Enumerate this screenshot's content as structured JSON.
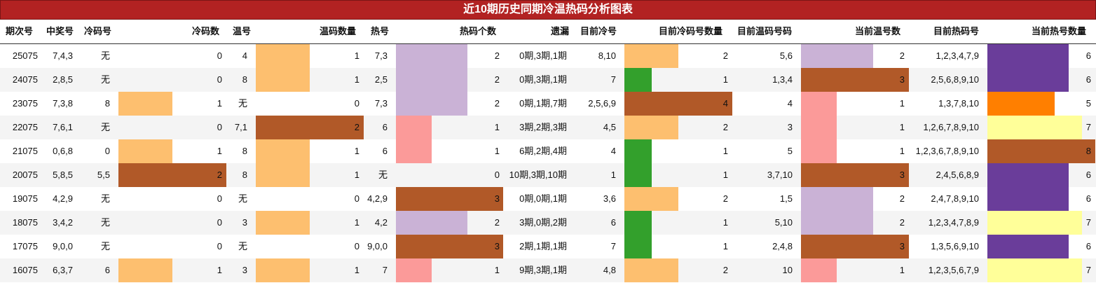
{
  "title": "近10期历史同期冷温热码分析图表",
  "headers": [
    "期次号",
    "中奖号",
    "冷码号",
    "冷码数",
    "温号",
    "温码数量",
    "热号",
    "热码个数",
    "遗漏",
    "目前冷号",
    "目前冷码号数量",
    "目前温码号码",
    "当前温号数",
    "目前热码号",
    "当前热号数量"
  ],
  "colors": {
    "1": "#fdbf6f",
    "2": "#b15928",
    "3": "#ff7f00",
    "4": "#ff7f00",
    "5": "#ff7f00",
    "6": "#6a3d9a",
    "7": "#ffff99",
    "8": "#b15928"
  },
  "rows": [
    {
      "issue": "25075",
      "win": "7,4,3",
      "cold": "无",
      "cold_n": 0,
      "warm": "4",
      "warm_n": 1,
      "hot": "7,3",
      "hot_n": 2,
      "miss": "0期,3期,1期",
      "cur_cold": "8,10",
      "cur_cold_n": 2,
      "cur_warm": "5,6",
      "cur_warm_n": 2,
      "cur_hot": "1,2,3,4,7,9",
      "cur_hot_n": 6
    },
    {
      "issue": "24075",
      "win": "2,8,5",
      "cold": "无",
      "cold_n": 0,
      "warm": "8",
      "warm_n": 1,
      "hot": "2,5",
      "hot_n": 2,
      "miss": "0期,3期,1期",
      "cur_cold": "7",
      "cur_cold_n": 1,
      "cur_warm": "1,3,4",
      "cur_warm_n": 3,
      "cur_hot": "2,5,6,8,9,10",
      "cur_hot_n": 6
    },
    {
      "issue": "23075",
      "win": "7,3,8",
      "cold": "8",
      "cold_n": 1,
      "warm": "无",
      "warm_n": 0,
      "hot": "7,3",
      "hot_n": 2,
      "miss": "0期,1期,7期",
      "cur_cold": "2,5,6,9",
      "cur_cold_n": 4,
      "cur_warm": "4",
      "cur_warm_n": 1,
      "cur_hot": "1,3,7,8,10",
      "cur_hot_n": 5
    },
    {
      "issue": "22075",
      "win": "7,6,1",
      "cold": "无",
      "cold_n": 0,
      "warm": "7,1",
      "warm_n": 2,
      "hot": "6",
      "hot_n": 1,
      "miss": "3期,2期,3期",
      "cur_cold": "4,5",
      "cur_cold_n": 2,
      "cur_warm": "3",
      "cur_warm_n": 1,
      "cur_hot": "1,2,6,7,8,9,10",
      "cur_hot_n": 7
    },
    {
      "issue": "21075",
      "win": "0,6,8",
      "cold": "0",
      "cold_n": 1,
      "warm": "8",
      "warm_n": 1,
      "hot": "6",
      "hot_n": 1,
      "miss": "6期,2期,4期",
      "cur_cold": "4",
      "cur_cold_n": 1,
      "cur_warm": "5",
      "cur_warm_n": 1,
      "cur_hot": "1,2,3,6,7,8,9,10",
      "cur_hot_n": 8
    },
    {
      "issue": "20075",
      "win": "5,8,5",
      "cold": "5,5",
      "cold_n": 2,
      "warm": "8",
      "warm_n": 1,
      "hot": "无",
      "hot_n": 0,
      "miss": "10期,3期,10期",
      "cur_cold": "1",
      "cur_cold_n": 1,
      "cur_warm": "3,7,10",
      "cur_warm_n": 3,
      "cur_hot": "2,4,5,6,8,9",
      "cur_hot_n": 6
    },
    {
      "issue": "19075",
      "win": "4,2,9",
      "cold": "无",
      "cold_n": 0,
      "warm": "无",
      "warm_n": 0,
      "hot": "4,2,9",
      "hot_n": 3,
      "miss": "0期,0期,1期",
      "cur_cold": "3,6",
      "cur_cold_n": 2,
      "cur_warm": "1,5",
      "cur_warm_n": 2,
      "cur_hot": "2,4,7,8,9,10",
      "cur_hot_n": 6
    },
    {
      "issue": "18075",
      "win": "3,4,2",
      "cold": "无",
      "cold_n": 0,
      "warm": "3",
      "warm_n": 1,
      "hot": "4,2",
      "hot_n": 2,
      "miss": "3期,0期,2期",
      "cur_cold": "6",
      "cur_cold_n": 1,
      "cur_warm": "5,10",
      "cur_warm_n": 2,
      "cur_hot": "1,2,3,4,7,8,9",
      "cur_hot_n": 7
    },
    {
      "issue": "17075",
      "win": "9,0,0",
      "cold": "无",
      "cold_n": 0,
      "warm": "无",
      "warm_n": 0,
      "hot": "9,0,0",
      "hot_n": 3,
      "miss": "2期,1期,1期",
      "cur_cold": "7",
      "cur_cold_n": 1,
      "cur_warm": "2,4,8",
      "cur_warm_n": 3,
      "cur_hot": "1,3,5,6,9,10",
      "cur_hot_n": 6
    },
    {
      "issue": "16075",
      "win": "6,3,7",
      "cold": "6",
      "cold_n": 1,
      "warm": "3",
      "warm_n": 1,
      "hot": "7",
      "hot_n": 1,
      "miss": "9期,3期,1期",
      "cur_cold": "4,8",
      "cur_cold_n": 2,
      "cur_warm": "10",
      "cur_warm_n": 1,
      "cur_hot": "1,2,3,5,6,7,9",
      "cur_hot_n": 7
    }
  ]
}
